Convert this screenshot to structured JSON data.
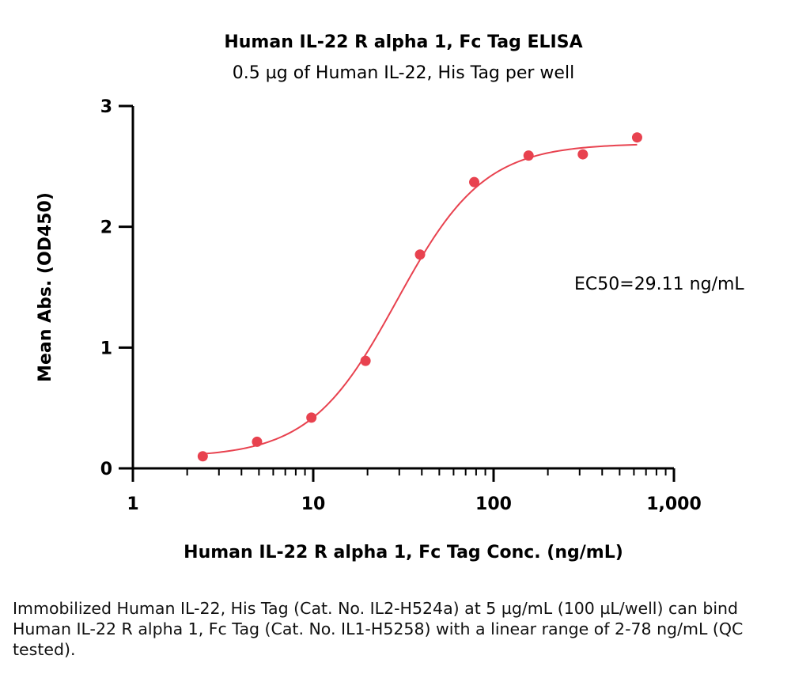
{
  "chart_data": {
    "type": "scatter",
    "title": "Human IL-22 R alpha 1, Fc Tag ELISA",
    "subtitle": "0.5 µg of Human IL-22, His Tag per well",
    "xlabel": "Human IL-22 R alpha 1, Fc Tag Conc. (ng/mL)",
    "ylabel": "Mean Abs. (OD450)",
    "xscale": "log",
    "xlim": [
      1,
      1000
    ],
    "ylim": [
      0,
      3
    ],
    "x_ticks": [
      1,
      10,
      100,
      1000
    ],
    "x_tick_labels": [
      "1",
      "10",
      "100",
      "1,000"
    ],
    "y_ticks": [
      0,
      1,
      2,
      3
    ],
    "y_tick_labels": [
      "0",
      "1",
      "2",
      "3"
    ],
    "grid": false,
    "color": "#e8424f",
    "series": [
      {
        "x": [
          2.44,
          4.88,
          9.77,
          19.5,
          39.1,
          78.1,
          156.3,
          312.5,
          625
        ],
        "y": [
          0.1,
          0.22,
          0.42,
          0.89,
          1.77,
          2.37,
          2.59,
          2.6,
          2.74
        ]
      }
    ],
    "fit_curve": {
      "model": "4PL",
      "bottom": 0.09,
      "top": 2.69,
      "ec50": 29.11,
      "hill": 1.8
    },
    "annotations": [
      {
        "text": "EC50=29.11 ng/mL"
      }
    ]
  },
  "caption": "Immobilized Human IL-22, His Tag (Cat. No. IL2-H524a) at 5 µg/mL (100 µL/well) can bind Human IL-22 R alpha 1, Fc Tag (Cat. No. IL1-H5258) with a linear range of 2-78 ng/mL (QC tested)."
}
